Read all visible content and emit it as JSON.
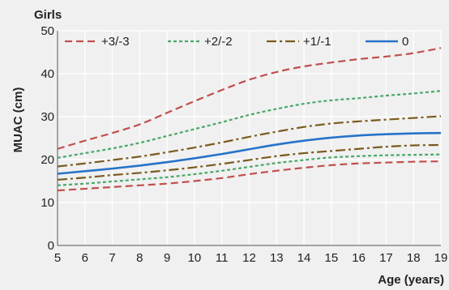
{
  "chart_data": {
    "type": "line",
    "title": "Girls",
    "xlabel": "Age (years)",
    "ylabel": "MUAC (cm)",
    "xlim": [
      5,
      19
    ],
    "ylim": [
      0,
      50
    ],
    "x_ticks": [
      5,
      6,
      7,
      8,
      9,
      10,
      11,
      12,
      13,
      14,
      15,
      16,
      17,
      18,
      19
    ],
    "y_ticks": [
      0,
      10,
      20,
      30,
      40,
      50
    ],
    "grid": true,
    "legend_position": "top",
    "x": [
      5,
      6,
      7,
      8,
      9,
      10,
      11,
      12,
      13,
      14,
      15,
      16,
      17,
      18,
      19
    ],
    "series": [
      {
        "name": "+3/-3",
        "color": "#c0504d",
        "dash": "dashed",
        "values_upper": [
          22.5,
          24.4,
          26.2,
          28.2,
          30.9,
          33.6,
          36.2,
          38.6,
          40.4,
          41.7,
          42.6,
          43.4,
          44.0,
          44.8,
          46.0
        ],
        "values_lower": [
          12.8,
          13.2,
          13.6,
          14.0,
          14.4,
          15.0,
          15.7,
          16.6,
          17.4,
          18.1,
          18.7,
          19.1,
          19.3,
          19.5,
          19.6
        ]
      },
      {
        "name": "+2/-2",
        "color": "#4aa86a",
        "dash": "dotted",
        "values_upper": [
          20.4,
          21.5,
          22.6,
          23.9,
          25.5,
          27.1,
          28.7,
          30.4,
          31.8,
          33.0,
          33.8,
          34.3,
          34.9,
          35.4,
          36.0
        ],
        "values_lower": [
          14.0,
          14.4,
          14.9,
          15.4,
          15.9,
          16.6,
          17.4,
          18.3,
          19.2,
          19.9,
          20.5,
          20.8,
          21.0,
          21.1,
          21.2
        ]
      },
      {
        "name": "+1/-1",
        "color": "#7a5a1e",
        "dash": "dashdot",
        "values_upper": [
          18.4,
          19.1,
          19.9,
          20.7,
          21.7,
          22.8,
          24.0,
          25.3,
          26.5,
          27.6,
          28.4,
          28.9,
          29.3,
          29.7,
          30.1
        ],
        "values_lower": [
          15.3,
          15.8,
          16.4,
          16.9,
          17.5,
          18.2,
          19.0,
          19.9,
          20.8,
          21.5,
          22.0,
          22.5,
          23.0,
          23.3,
          23.4
        ]
      },
      {
        "name": "0",
        "color": "#2673c9",
        "dash": "solid",
        "values": [
          16.7,
          17.3,
          17.9,
          18.6,
          19.4,
          20.3,
          21.3,
          22.4,
          23.5,
          24.4,
          25.1,
          25.6,
          25.9,
          26.1,
          26.2
        ]
      }
    ]
  }
}
